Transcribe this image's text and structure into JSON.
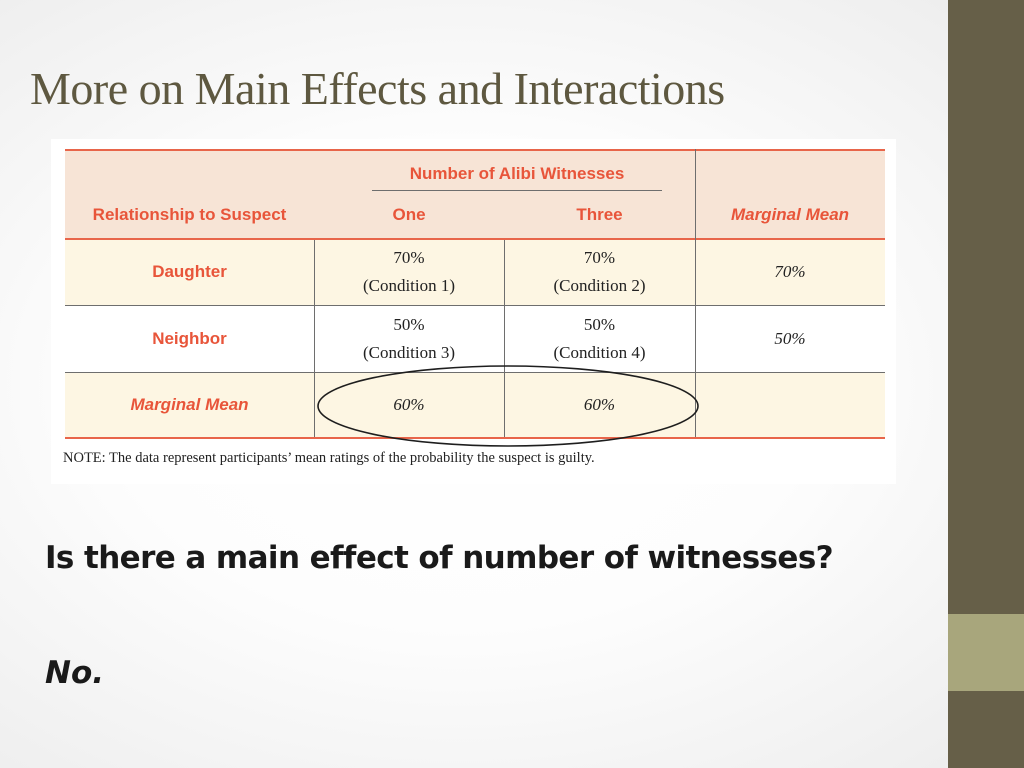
{
  "slide": {
    "title": "More on Main Effects and Interactions",
    "question": "Is there a main effect of number of witnesses?",
    "answer": "No."
  },
  "colors": {
    "accent_bar": "#665f48",
    "accent_block": "#a8a67c",
    "title_text": "#5e5840",
    "table_header_text": "#e8553a",
    "table_rule": "#e8654a",
    "table_header_fill": "#f7e4d6",
    "table_shaded_fill": "#fdf6e3"
  },
  "table": {
    "spanning_header": "Number of Alibi Witnesses",
    "row_header_label": "Relationship to Suspect",
    "columns": [
      "One",
      "Three"
    ],
    "marginal_label": "Marginal Mean",
    "rows": [
      {
        "label": "Daughter",
        "cells": [
          {
            "value": "70%",
            "condition": "(Condition 1)"
          },
          {
            "value": "70%",
            "condition": "(Condition 2)"
          }
        ],
        "marginal": "70%"
      },
      {
        "label": "Neighbor",
        "cells": [
          {
            "value": "50%",
            "condition": "(Condition 3)"
          },
          {
            "value": "50%",
            "condition": "(Condition 4)"
          }
        ],
        "marginal": "50%"
      }
    ],
    "marginal_row": {
      "label": "Marginal Mean",
      "values": [
        "60%",
        "60%"
      ],
      "marginal": ""
    },
    "note": "NOTE: The data represent participants’ mean ratings of the probability the suspect is guilty."
  }
}
